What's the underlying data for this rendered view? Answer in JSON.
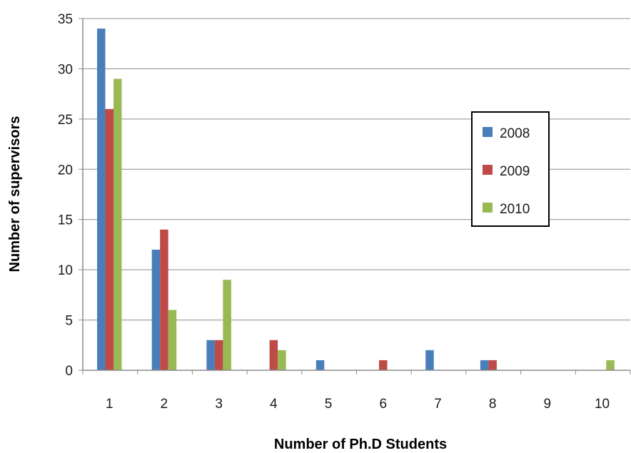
{
  "chart_data": {
    "type": "bar",
    "title": "",
    "xlabel": "Number of Ph.D Students",
    "ylabel": "Number of supervisors",
    "categories": [
      "1",
      "2",
      "3",
      "4",
      "5",
      "6",
      "7",
      "8",
      "9",
      "10"
    ],
    "series": [
      {
        "name": "2008",
        "color": "#4a7ebb",
        "values": [
          34,
          12,
          3,
          0,
          1,
          0,
          2,
          1,
          0,
          0
        ]
      },
      {
        "name": "2009",
        "color": "#be4b48",
        "values": [
          26,
          14,
          3,
          3,
          0,
          1,
          0,
          1,
          0,
          0
        ]
      },
      {
        "name": "2010",
        "color": "#98b954",
        "values": [
          29,
          6,
          9,
          2,
          0,
          0,
          0,
          0,
          0,
          1
        ]
      }
    ],
    "ylim": [
      0,
      35
    ],
    "yticks": [
      0,
      5,
      10,
      15,
      20,
      25,
      30,
      35
    ],
    "grid": true,
    "legend_position": "right"
  }
}
